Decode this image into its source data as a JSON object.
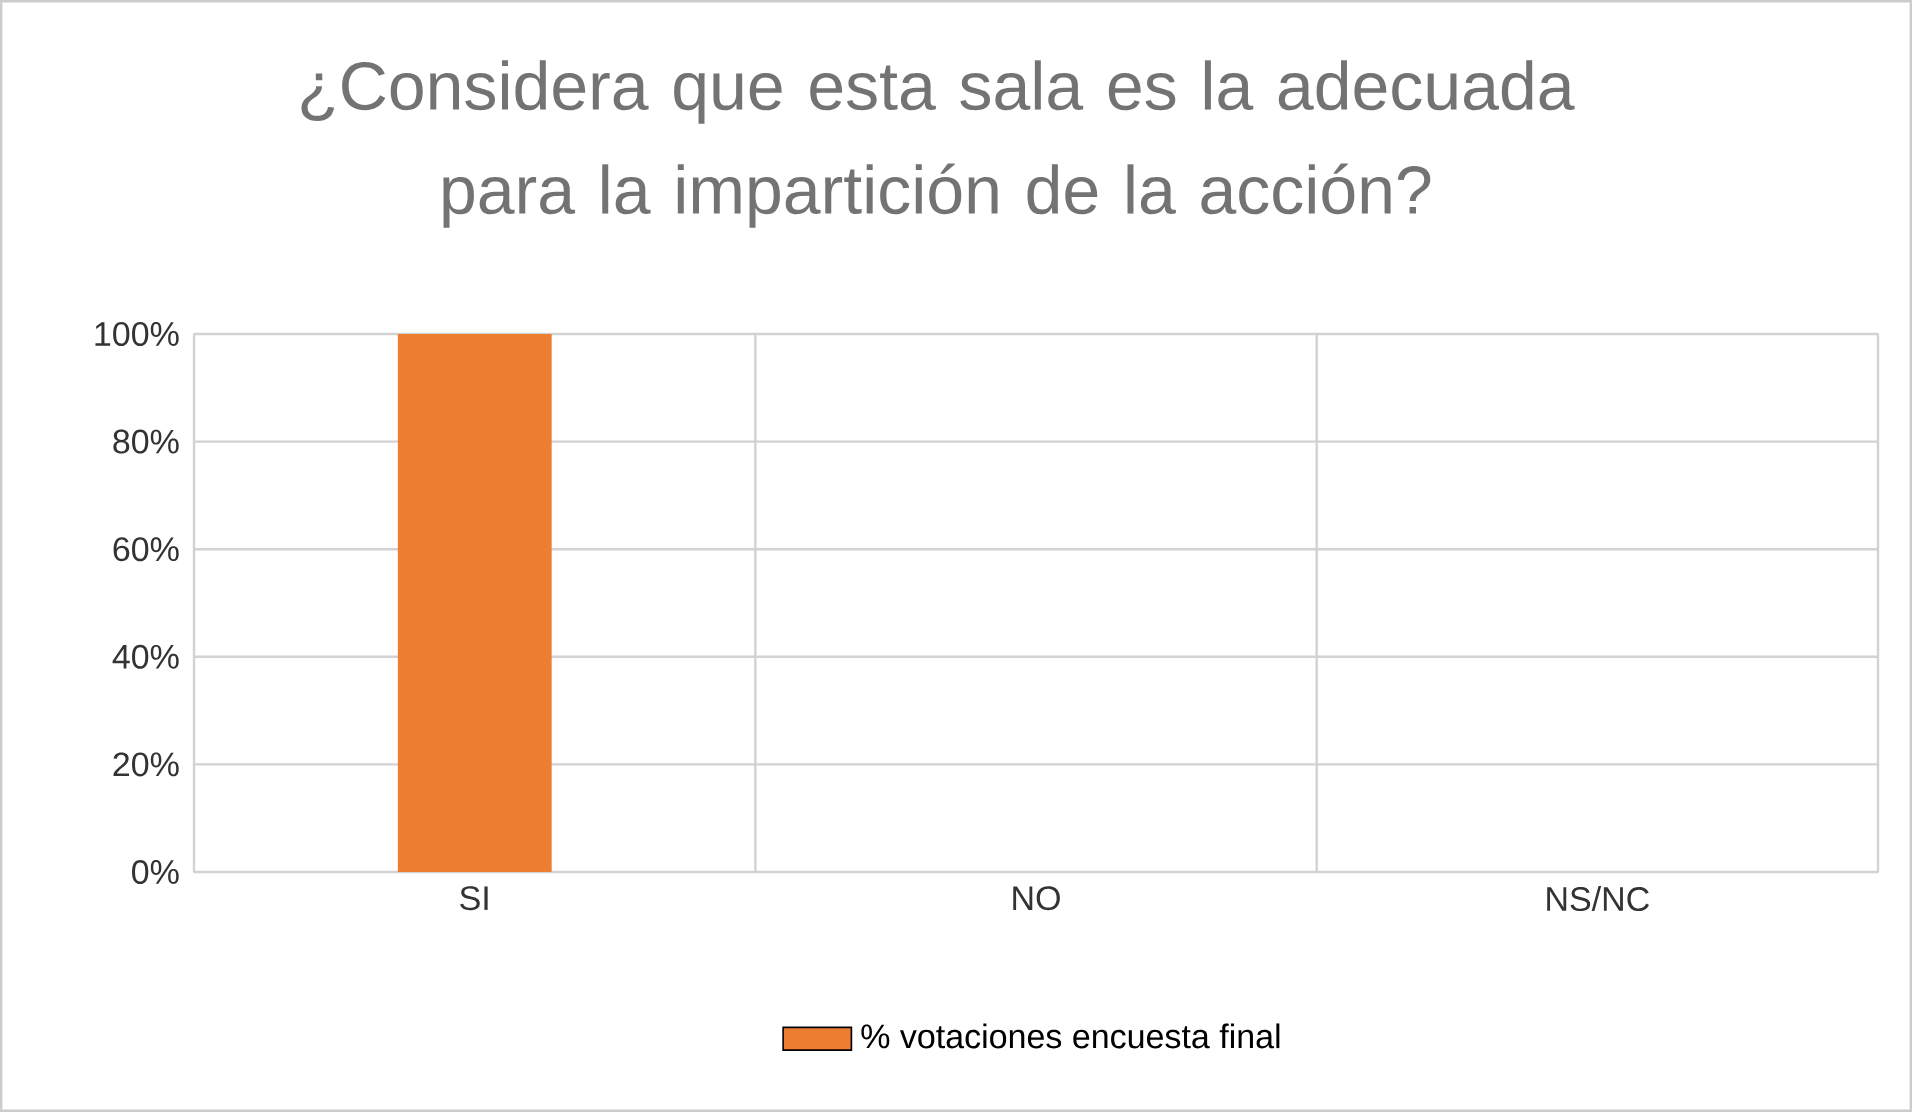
{
  "chart_data": {
    "type": "bar",
    "title": "¿Considera que esta sala es la adecuada para la impartición de la acción?",
    "categories": [
      "SI",
      "NO",
      "NS/NC"
    ],
    "series": [
      {
        "name": "% votaciones encuesta final",
        "color": "#ed7d31",
        "values": [
          100,
          0,
          0
        ]
      }
    ],
    "ylim": [
      0,
      100
    ],
    "yticks": [
      {
        "value": 0,
        "label": "0%"
      },
      {
        "value": 20,
        "label": "20%"
      },
      {
        "value": 40,
        "label": "40%"
      },
      {
        "value": 60,
        "label": "60%"
      },
      {
        "value": 80,
        "label": "80%"
      },
      {
        "value": 100,
        "label": "100%"
      }
    ],
    "grid": true,
    "legend": "bottom"
  }
}
